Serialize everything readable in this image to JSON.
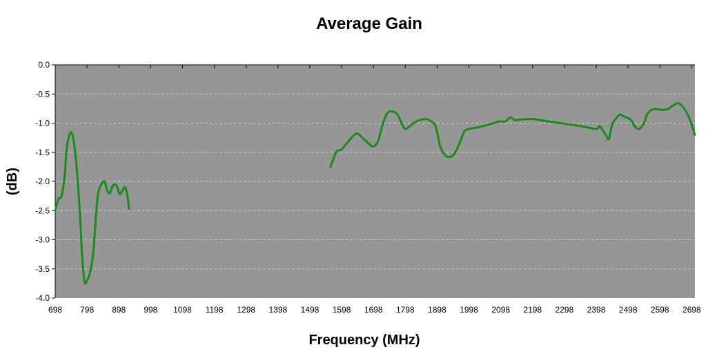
{
  "chart_data": {
    "type": "line",
    "title": "Average Gain",
    "xlabel": "Frequency (MHz)",
    "ylabel": "(dB)",
    "xlim": [
      698,
      2708
    ],
    "ylim": [
      -4.0,
      0.0
    ],
    "x_ticks": [
      "698",
      "798",
      "898",
      "998",
      "1098",
      "1198",
      "1298",
      "1398",
      "1498",
      "1598",
      "1698",
      "1798",
      "1898",
      "1998",
      "2098",
      "2198",
      "2298",
      "2398",
      "2498",
      "2598",
      "2698"
    ],
    "y_ticks": [
      "0.0",
      "-0.5",
      "-1.0",
      "-1.5",
      "-2.0",
      "-2.5",
      "-3.0",
      "-3.5",
      "-4.0"
    ],
    "grid": "horizontal-dashed",
    "legend": "none",
    "colors": {
      "plot_background": "#969696",
      "line": "#1a8a1a",
      "grid": "#cccccc"
    },
    "series": [
      {
        "segments": [
          [
            [
              698,
              -2.5
            ],
            [
              708,
              -2.3
            ],
            [
              718,
              -2.25
            ],
            [
              728,
              -1.9
            ],
            [
              733,
              -1.5
            ],
            [
              740,
              -1.25
            ],
            [
              748,
              -1.16
            ],
            [
              756,
              -1.3
            ],
            [
              766,
              -1.8
            ],
            [
              776,
              -2.6
            ],
            [
              783,
              -3.3
            ],
            [
              790,
              -3.72
            ],
            [
              798,
              -3.7
            ],
            [
              808,
              -3.55
            ],
            [
              818,
              -3.2
            ],
            [
              826,
              -2.6
            ],
            [
              833,
              -2.2
            ],
            [
              843,
              -2.05
            ],
            [
              853,
              -2.0
            ],
            [
              861,
              -2.15
            ],
            [
              870,
              -2.2
            ],
            [
              878,
              -2.08
            ],
            [
              886,
              -2.05
            ],
            [
              893,
              -2.1
            ],
            [
              901,
              -2.22
            ],
            [
              910,
              -2.15
            ],
            [
              918,
              -2.1
            ],
            [
              925,
              -2.25
            ],
            [
              930,
              -2.47
            ]
          ],
          [
            [
              1563,
              -1.75
            ],
            [
              1573,
              -1.6
            ],
            [
              1583,
              -1.48
            ],
            [
              1598,
              -1.45
            ],
            [
              1618,
              -1.32
            ],
            [
              1638,
              -1.2
            ],
            [
              1648,
              -1.18
            ],
            [
              1663,
              -1.25
            ],
            [
              1683,
              -1.35
            ],
            [
              1698,
              -1.4
            ],
            [
              1713,
              -1.3
            ],
            [
              1728,
              -1.0
            ],
            [
              1743,
              -0.82
            ],
            [
              1758,
              -0.8
            ],
            [
              1773,
              -0.85
            ],
            [
              1788,
              -1.02
            ],
            [
              1798,
              -1.1
            ],
            [
              1813,
              -1.05
            ],
            [
              1833,
              -0.97
            ],
            [
              1858,
              -0.93
            ],
            [
              1873,
              -0.95
            ],
            [
              1893,
              -1.05
            ],
            [
              1908,
              -1.4
            ],
            [
              1923,
              -1.55
            ],
            [
              1938,
              -1.58
            ],
            [
              1953,
              -1.52
            ],
            [
              1968,
              -1.35
            ],
            [
              1983,
              -1.15
            ],
            [
              1998,
              -1.1
            ],
            [
              2028,
              -1.07
            ],
            [
              2063,
              -1.02
            ],
            [
              2093,
              -0.97
            ],
            [
              2113,
              -0.97
            ],
            [
              2128,
              -0.9
            ],
            [
              2143,
              -0.95
            ],
            [
              2158,
              -0.94
            ],
            [
              2198,
              -0.93
            ],
            [
              2248,
              -0.97
            ],
            [
              2298,
              -1.01
            ],
            [
              2348,
              -1.05
            ],
            [
              2398,
              -1.1
            ],
            [
              2408,
              -1.05
            ],
            [
              2418,
              -1.12
            ],
            [
              2428,
              -1.2
            ],
            [
              2438,
              -1.27
            ],
            [
              2448,
              -1.02
            ],
            [
              2463,
              -0.9
            ],
            [
              2473,
              -0.85
            ],
            [
              2483,
              -0.88
            ],
            [
              2493,
              -0.9
            ],
            [
              2508,
              -0.95
            ],
            [
              2518,
              -1.05
            ],
            [
              2533,
              -1.1
            ],
            [
              2548,
              -1.0
            ],
            [
              2558,
              -0.85
            ],
            [
              2573,
              -0.77
            ],
            [
              2588,
              -0.76
            ],
            [
              2603,
              -0.77
            ],
            [
              2623,
              -0.76
            ],
            [
              2638,
              -0.7
            ],
            [
              2653,
              -0.66
            ],
            [
              2663,
              -0.68
            ],
            [
              2678,
              -0.78
            ],
            [
              2693,
              -0.95
            ],
            [
              2708,
              -1.2
            ]
          ]
        ]
      }
    ]
  }
}
